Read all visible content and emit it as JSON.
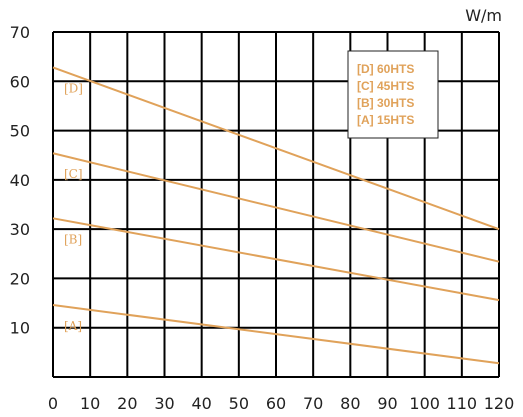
{
  "chart_data": {
    "type": "line",
    "unit_label": "W/m",
    "xlim": [
      0,
      120
    ],
    "ylim": [
      0,
      70
    ],
    "x_ticks": [
      "0",
      "10",
      "20",
      "30",
      "40",
      "50",
      "60",
      "70",
      "80",
      "90",
      "100",
      "110",
      "120"
    ],
    "y_ticks": [
      "10",
      "20",
      "30",
      "40",
      "50",
      "60",
      "70"
    ],
    "grid": true,
    "legend_position": "top-right",
    "series": [
      {
        "name": "15HTS",
        "tag": "[A]",
        "legend": "[A]   15HTS",
        "x": [
          0,
          120
        ],
        "y": [
          14.6,
          2.8
        ]
      },
      {
        "name": "30HTS",
        "tag": "[B]",
        "legend": "[B]   30HTS",
        "x": [
          0,
          120
        ],
        "y": [
          32.2,
          15.6
        ]
      },
      {
        "name": "45HTS",
        "tag": "[C]",
        "legend": "[C]   45HTS",
        "x": [
          0,
          120
        ],
        "y": [
          45.4,
          23.4
        ]
      },
      {
        "name": "60HTS",
        "tag": "[D]",
        "legend": "[D]   60HTS",
        "x": [
          0,
          120
        ],
        "y": [
          62.8,
          30.0
        ]
      }
    ],
    "colors": {
      "series": "#E0A25A",
      "grid": "#000000",
      "text": "#222222"
    }
  }
}
